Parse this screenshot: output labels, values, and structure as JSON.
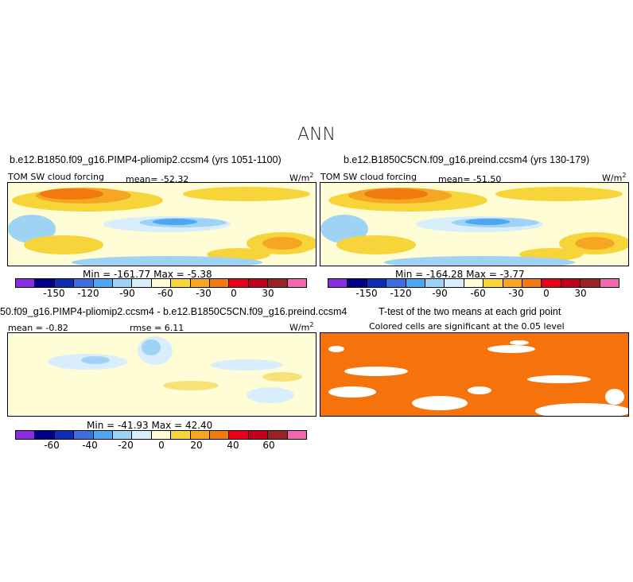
{
  "main_title": "ANN",
  "panels": [
    {
      "title": "b.e12.B1850.f09_g16.PIMP4-pliomip2.ccsm4 (yrs 1051-1100)",
      "left_label": "TOM SW cloud forcing",
      "mean_text": "mean=  -52.32",
      "units": "W/m",
      "units_exp": "2",
      "minmax": "Min = -161.77  Max =   -5.38",
      "colorbar_ticks": [
        "-150",
        "-120",
        "-90",
        "-60",
        "-30",
        "0",
        "30"
      ]
    },
    {
      "title": "b.e12.B1850C5CN.f09_g16.preind.ccsm4 (yrs 130-179)",
      "left_label": "TOM SW cloud forcing",
      "mean_text": "mean=  -51.50",
      "units": "W/m",
      "units_exp": "2",
      "minmax": "Min = -164.28  Max =   -3.77",
      "colorbar_ticks": [
        "-150",
        "-120",
        "-90",
        "-60",
        "-30",
        "0",
        "30"
      ]
    },
    {
      "title": "50.f09_g16.PIMP4-pliomip2.ccsm4 - b.e12.B1850C5CN.f09_g16.preind.ccsm4",
      "left_label": "mean =  -0.82",
      "mean_text": "rmse =   6.11",
      "units": "W/m",
      "units_exp": "2",
      "minmax": "Min = -41.93  Max =  42.40",
      "colorbar_ticks": [
        "-60",
        "-40",
        "-20",
        "0",
        "20",
        "40",
        "60"
      ]
    },
    {
      "title": "T-test of the two means at each grid point",
      "left_label": "Colored cells are significant at the 0.05 level"
    }
  ],
  "colors": {
    "colorbar": [
      "#8a2be2",
      "#00008b",
      "#0a2fb5",
      "#3c6ee0",
      "#4ea6f0",
      "#9fd3f5",
      "#d8eefc",
      "#fffdd5",
      "#f7d53a",
      "#f5a623",
      "#f07a10",
      "#e8001a",
      "#c2001a",
      "#992222",
      "#f067b0"
    ],
    "significant": "#f5730a"
  },
  "chart_data": [
    {
      "type": "heatmap",
      "title": "b.e12.B1850.f09_g16.PIMP4-pliomip2.ccsm4 (yrs 1051-1100)",
      "variable": "TOM SW cloud forcing",
      "units": "W/m2",
      "mean": -52.32,
      "min": -161.77,
      "max": -5.38,
      "colorbar_levels": [
        -150,
        -120,
        -90,
        -60,
        -30,
        0,
        30
      ]
    },
    {
      "type": "heatmap",
      "title": "b.e12.B1850C5CN.f09_g16.preind.ccsm4 (yrs 130-179)",
      "variable": "TOM SW cloud forcing",
      "units": "W/m2",
      "mean": -51.5,
      "min": -164.28,
      "max": -3.77,
      "colorbar_levels": [
        -150,
        -120,
        -90,
        -60,
        -30,
        0,
        30
      ]
    },
    {
      "type": "heatmap",
      "title": "50.f09_g16.PIMP4-pliomip2.ccsm4 - b.e12.B1850C5CN.f09_g16.preind.ccsm4",
      "units": "W/m2",
      "mean": -0.82,
      "rmse": 6.11,
      "min": -41.93,
      "max": 42.4,
      "colorbar_levels": [
        -60,
        -40,
        -20,
        0,
        20,
        40,
        60
      ]
    },
    {
      "type": "heatmap",
      "title": "T-test of the two means at each grid point",
      "note": "Colored cells are significant at the 0.05 level"
    }
  ]
}
